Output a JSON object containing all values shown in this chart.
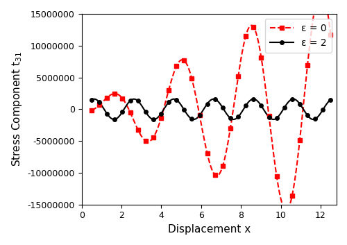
{
  "xlabel": "Displacement x",
  "ylabel": "Stress Component t$_{31}$",
  "xlim": [
    0,
    12.8
  ],
  "ylim": [
    -15000000,
    15000000
  ],
  "yticks": [
    -15000000,
    -10000000,
    -5000000,
    0,
    5000000,
    10000000,
    15000000
  ],
  "xticks": [
    0,
    2,
    4,
    6,
    8,
    10,
    12
  ],
  "line1_color": "#FF0000",
  "line1_label": "ε = 0",
  "line2_color": "#000000",
  "line2_label": "ε = 2",
  "legend_loc": "upper right",
  "figsize": [
    5.0,
    3.53
  ],
  "dpi": 100
}
